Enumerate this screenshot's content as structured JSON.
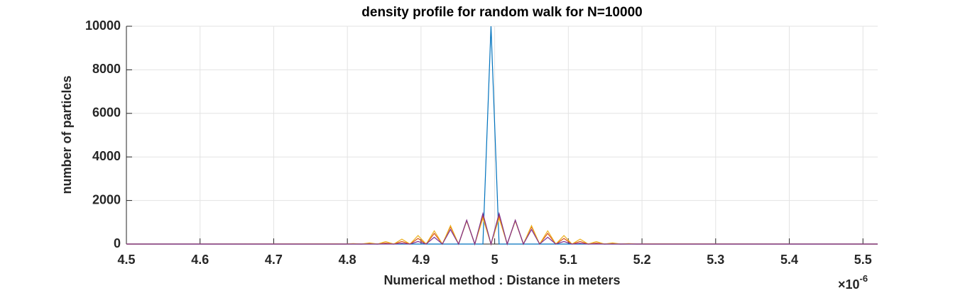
{
  "chart_data": {
    "type": "line",
    "title": "density profile for random walk for N=10000",
    "x_label": "Numerical method : Distance in meters",
    "y_label": "number of particles",
    "x_multiplier": {
      "base": "×10",
      "exponent": "-6"
    },
    "x": [
      4.5,
      4.786,
      4.797,
      4.808,
      4.819,
      4.83,
      4.841,
      4.852,
      4.863,
      4.874,
      4.885,
      4.896,
      4.907,
      4.918,
      4.929,
      4.94,
      4.951,
      4.962,
      4.973,
      4.984,
      4.995,
      5.006,
      5.017,
      5.028,
      5.039,
      5.05,
      5.061,
      5.072,
      5.083,
      5.094,
      5.105,
      5.116,
      5.127,
      5.138,
      5.149,
      5.16,
      5.171,
      5.182,
      5.193,
      5.204,
      5.52
    ],
    "series": [
      {
        "color": "#0072BD",
        "values": [
          0,
          0,
          0,
          0,
          0,
          0,
          0,
          0,
          0,
          0,
          0,
          0,
          0,
          0,
          0,
          0,
          0,
          0,
          0,
          0,
          10000,
          0,
          0,
          0,
          0,
          0,
          0,
          0,
          0,
          0,
          0,
          0,
          0,
          0,
          0,
          0,
          0,
          0,
          0,
          0,
          0
        ]
      },
      {
        "color": "#D95319",
        "values": [
          0,
          0,
          0,
          4,
          0,
          14,
          0,
          44,
          0,
          116,
          0,
          257,
          0,
          488,
          0,
          789,
          0,
          1086,
          0,
          1274,
          0,
          1274,
          0,
          1086,
          0,
          789,
          0,
          488,
          0,
          257,
          0,
          116,
          0,
          44,
          0,
          14,
          0,
          4,
          0,
          0,
          0
        ]
      },
      {
        "color": "#EDB120",
        "values": [
          0,
          8,
          0,
          22,
          0,
          53,
          0,
          114,
          0,
          224,
          0,
          390,
          0,
          607,
          0,
          848,
          0,
          1059,
          0,
          1183,
          0,
          1183,
          0,
          1059,
          0,
          848,
          0,
          607,
          0,
          390,
          0,
          224,
          0,
          114,
          0,
          53,
          0,
          22,
          0,
          8,
          0
        ]
      },
      {
        "color": "#7E2F8E",
        "values": [
          0,
          0,
          0,
          0,
          0,
          0,
          0,
          7,
          0,
          33,
          0,
          116,
          0,
          314,
          0,
          664,
          0,
          1095,
          0,
          1405,
          0,
          1405,
          0,
          1095,
          0,
          664,
          0,
          314,
          0,
          116,
          0,
          33,
          0,
          7,
          0,
          0,
          0,
          0,
          0,
          0,
          0
        ]
      }
    ],
    "xlim": [
      4.5,
      5.52
    ],
    "ylim": [
      0,
      10000
    ],
    "xticks": [
      4.5,
      4.6,
      4.7,
      4.8,
      4.9,
      5,
      5.1,
      5.2,
      5.3,
      5.4,
      5.5
    ],
    "yticks": [
      0,
      2000,
      4000,
      6000,
      8000,
      10000
    ],
    "grid": true
  }
}
